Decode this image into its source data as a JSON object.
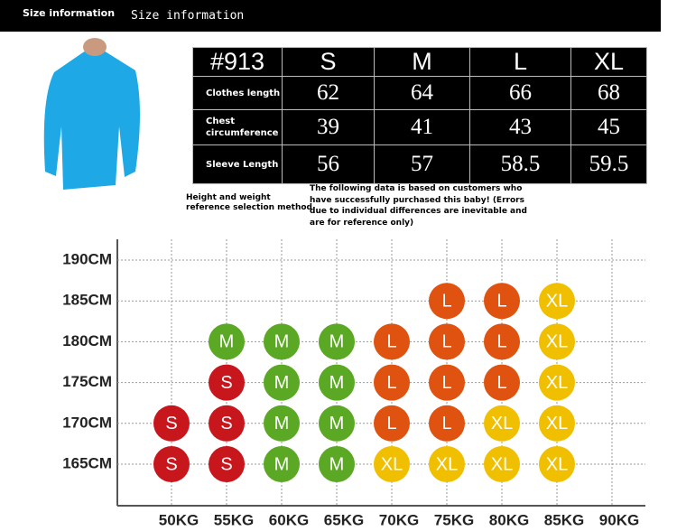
{
  "header": {
    "title": "Size information",
    "subtitle": "Size information"
  },
  "table": {
    "columns": [
      "#913",
      "S",
      "M",
      "L",
      "XL"
    ],
    "rows": [
      [
        "Clothes length",
        "62",
        "64",
        "66",
        "68"
      ],
      [
        "Chest circumference",
        "39",
        "41",
        "43",
        "45"
      ],
      [
        "Sleeve Length",
        "56",
        "57",
        "58.5",
        "59.5"
      ]
    ]
  },
  "notes": [
    "Height and weight reference selection method",
    "The following data is based on customers who have successfully purchased this baby! (Errors due to individual differences are inevitable and are for reference only)"
  ],
  "chart": {
    "y_labels": [
      "190CM",
      "185CM",
      "180CM",
      "175CM",
      "170CM",
      "165CM"
    ],
    "x_labels": [
      "50KG",
      "55KG",
      "60KG",
      "65KG",
      "70KG",
      "75KG",
      "80KG",
      "85KG",
      "90KG"
    ],
    "rows": [
      [
        null,
        null,
        null,
        null,
        null,
        null,
        null,
        null,
        null
      ],
      [
        null,
        null,
        null,
        null,
        null,
        "L",
        "L",
        "XL",
        null
      ],
      [
        null,
        "M",
        "M",
        "M",
        "L",
        "L",
        "L",
        "XL",
        null
      ],
      [
        null,
        "S",
        "M",
        "M",
        "L",
        "L",
        "L",
        "XL",
        null
      ],
      [
        "S",
        "S",
        "M",
        "M",
        "L",
        "L",
        "XL",
        "XL",
        null
      ],
      [
        "S",
        "S",
        "M",
        "M",
        "XL",
        "XL",
        "XL",
        "XL",
        null
      ]
    ],
    "size_colors": {
      "S": "#c8161d",
      "M": "#5aa823",
      "L": "#df520f",
      "XL": "#f0c000"
    }
  }
}
